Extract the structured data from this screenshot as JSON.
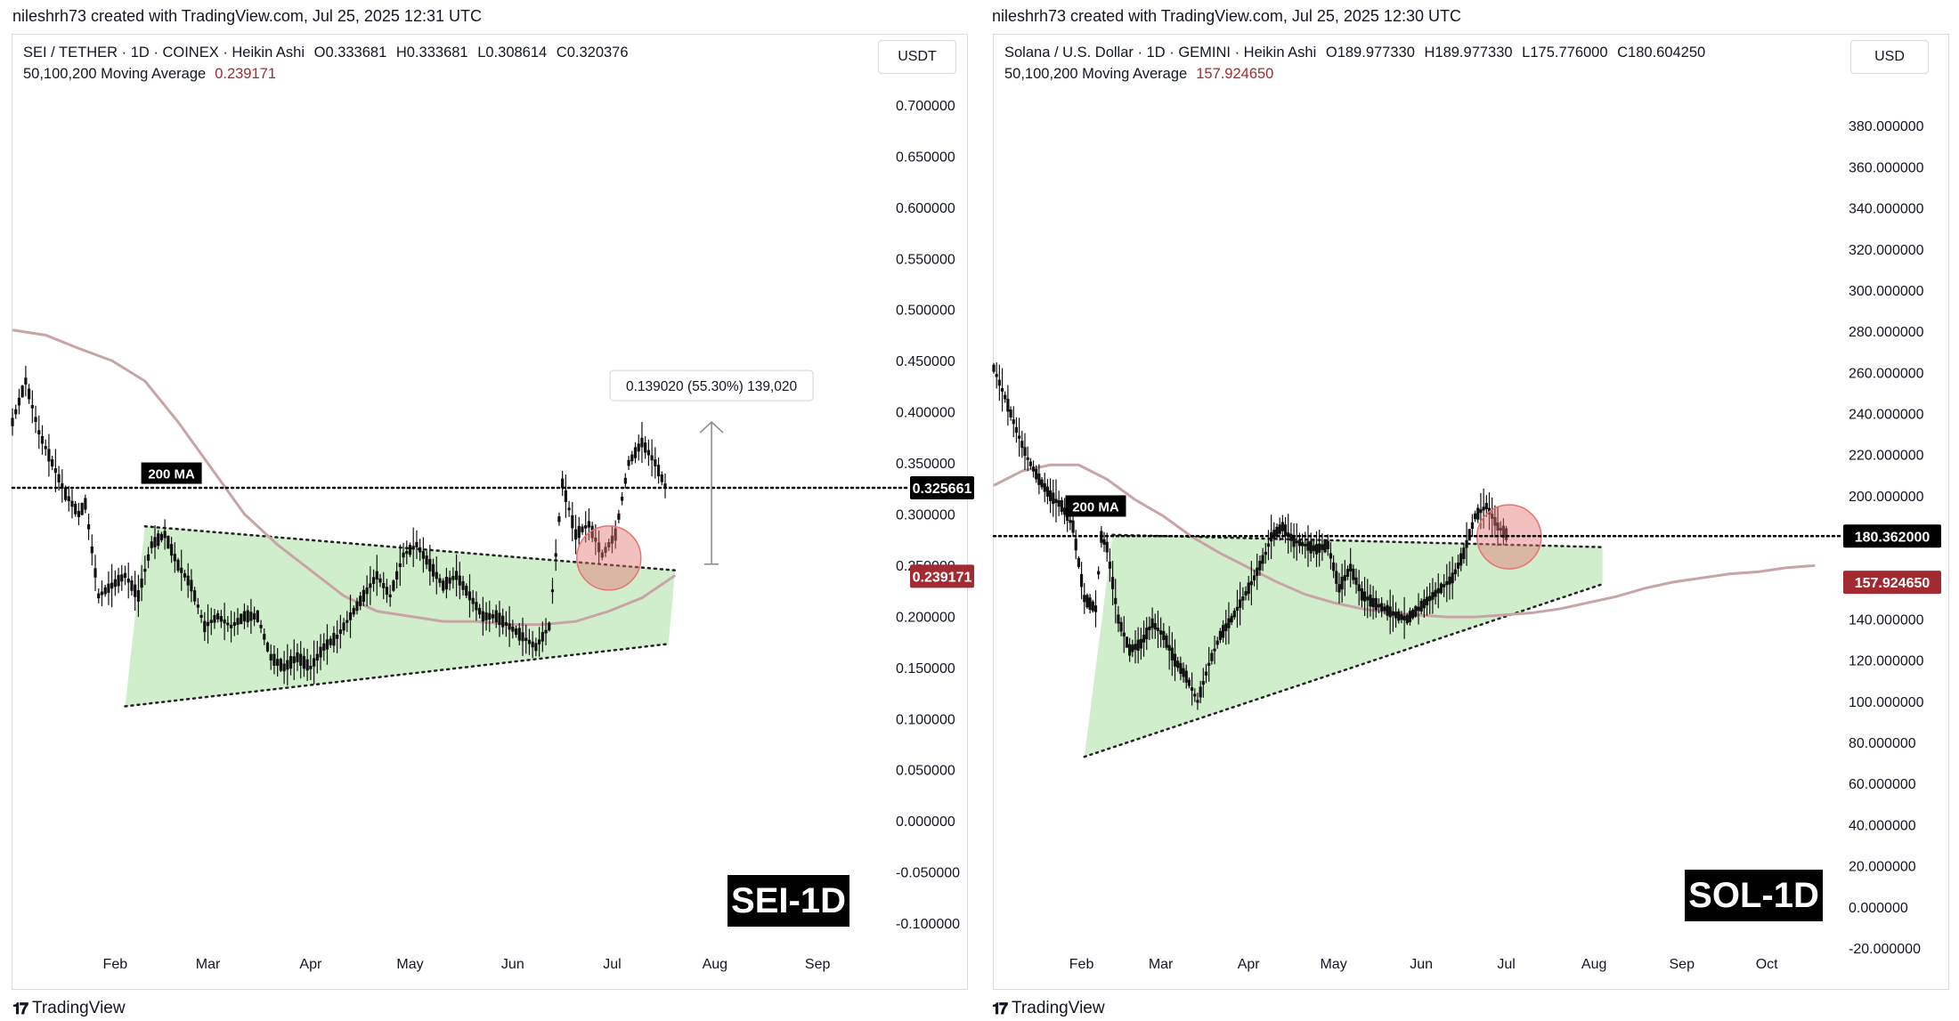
{
  "panels": [
    {
      "credit": "nileshrh73 created with TradingView.com, Jul 25, 2025 12:31 UTC",
      "symbol_line": "SEI / TETHER · 1D · COINEX · Heikin Ashi",
      "ohlc": {
        "o": "O0.333681",
        "h": "H0.333681",
        "l": "L0.308614",
        "c": "C0.320376"
      },
      "ma_label": "50,100,200 Moving Average",
      "ma_value": "0.239171",
      "currency": "USDT",
      "stamp": "SEI-1D",
      "brand": "TradingView"
    },
    {
      "credit": "nileshrh73 created with TradingView.com, Jul 25, 2025 12:30 UTC",
      "symbol_line": "Solana / U.S. Dollar · 1D · GEMINI · Heikin Ashi",
      "ohlc": {
        "o": "O189.977330",
        "h": "H189.977330",
        "l": "L175.776000",
        "c": "C180.604250"
      },
      "ma_label": "50,100,200 Moving Average",
      "ma_value": "157.924650",
      "currency": "USD",
      "stamp": "SOL-1D",
      "brand": "TradingView"
    }
  ],
  "chart_data": [
    {
      "type": "candlestick",
      "title": "SEI / TETHER · 1D · COINEX · Heikin Ashi",
      "y_ticks": [
        "0.700000",
        "0.650000",
        "0.600000",
        "0.550000",
        "0.500000",
        "0.450000",
        "0.400000",
        "0.350000",
        "0.300000",
        "0.250000",
        "0.200000",
        "0.150000",
        "0.100000",
        "0.050000",
        "0.000000",
        "-0.050000",
        "-0.100000"
      ],
      "ylim": [
        -0.12,
        0.72
      ],
      "x_ticks": [
        "Feb",
        "Mar",
        "Apr",
        "May",
        "Jun",
        "Jul",
        "Aug",
        "Sep"
      ],
      "x_tick_days": [
        31,
        59,
        90,
        120,
        151,
        181,
        212,
        243
      ],
      "x_domain": [
        0,
        265
      ],
      "price_line": {
        "value": 0.325661,
        "label": "0.325661",
        "color": "#000000"
      },
      "ma_badge": {
        "value": 0.239171,
        "label": "0.239171",
        "color": "#a32a30"
      },
      "ma200_label": "200 MA",
      "ma200_label_price": 0.34,
      "ma200": {
        "days": [
          0,
          10,
          20,
          30,
          40,
          50,
          60,
          70,
          80,
          90,
          100,
          110,
          120,
          130,
          140,
          150,
          160,
          170,
          180,
          190,
          200
        ],
        "values": [
          0.48,
          0.475,
          0.462,
          0.45,
          0.43,
          0.39,
          0.345,
          0.3,
          0.27,
          0.245,
          0.22,
          0.205,
          0.2,
          0.195,
          0.195,
          0.192,
          0.192,
          0.195,
          0.205,
          0.218,
          0.24
        ]
      },
      "pattern": {
        "upper": [
          [
            40,
            0.288
          ],
          [
            200,
            0.245
          ]
        ],
        "lower": [
          [
            34,
            0.112
          ],
          [
            198,
            0.173
          ]
        ],
        "fill": "#c8ebc3"
      },
      "breakout_circle": {
        "day": 180,
        "price": 0.257,
        "color": "#e57373"
      },
      "measurement": {
        "label": "0.139020 (55.30%) 139,020",
        "day": 211,
        "from": 0.251,
        "to": 0.39
      },
      "price_path": [
        [
          0,
          0.39
        ],
        [
          4,
          0.43
        ],
        [
          8,
          0.38
        ],
        [
          12,
          0.35
        ],
        [
          16,
          0.32
        ],
        [
          20,
          0.3
        ],
        [
          22,
          0.31
        ],
        [
          26,
          0.22
        ],
        [
          30,
          0.23
        ],
        [
          34,
          0.24
        ],
        [
          38,
          0.22
        ],
        [
          42,
          0.27
        ],
        [
          46,
          0.28
        ],
        [
          50,
          0.25
        ],
        [
          54,
          0.23
        ],
        [
          58,
          0.19
        ],
        [
          62,
          0.2
        ],
        [
          66,
          0.19
        ],
        [
          70,
          0.2
        ],
        [
          74,
          0.2
        ],
        [
          78,
          0.16
        ],
        [
          82,
          0.15
        ],
        [
          86,
          0.16
        ],
        [
          90,
          0.15
        ],
        [
          94,
          0.17
        ],
        [
          98,
          0.18
        ],
        [
          102,
          0.2
        ],
        [
          106,
          0.22
        ],
        [
          110,
          0.24
        ],
        [
          114,
          0.22
        ],
        [
          118,
          0.26
        ],
        [
          122,
          0.27
        ],
        [
          126,
          0.25
        ],
        [
          130,
          0.23
        ],
        [
          134,
          0.24
        ],
        [
          138,
          0.22
        ],
        [
          142,
          0.2
        ],
        [
          146,
          0.2
        ],
        [
          150,
          0.19
        ],
        [
          154,
          0.18
        ],
        [
          158,
          0.17
        ],
        [
          162,
          0.19
        ],
        [
          164,
          0.26
        ],
        [
          166,
          0.33
        ],
        [
          170,
          0.28
        ],
        [
          174,
          0.29
        ],
        [
          178,
          0.26
        ],
        [
          182,
          0.28
        ],
        [
          186,
          0.35
        ],
        [
          190,
          0.37
        ],
        [
          194,
          0.35
        ],
        [
          198,
          0.32
        ]
      ]
    },
    {
      "type": "candlestick",
      "title": "Solana / U.S. Dollar · 1D · GEMINI · Heikin Ashi",
      "y_ticks": [
        "380.000000",
        "360.000000",
        "340.000000",
        "320.000000",
        "300.000000",
        "280.000000",
        "260.000000",
        "240.000000",
        "220.000000",
        "200.000000",
        "180.000000",
        "160.000000",
        "140.000000",
        "120.000000",
        "100.000000",
        "80.000000",
        "60.000000",
        "40.000000",
        "20.000000",
        "0.000000",
        "-20.000000"
      ],
      "ylim": [
        -20,
        400
      ],
      "x_ticks": [
        "Feb",
        "Mar",
        "Apr",
        "May",
        "Jun",
        "Jul",
        "Aug",
        "Sep",
        "Oct"
      ],
      "x_tick_days": [
        31,
        59,
        90,
        120,
        151,
        181,
        212,
        243,
        273
      ],
      "x_domain": [
        0,
        300
      ],
      "price_line": {
        "value": 180.362,
        "label": "180.362000",
        "color": "#000000"
      },
      "ma_badge": {
        "value": 157.92465,
        "label": "157.924650",
        "color": "#a32a30"
      },
      "ma200_label": "200 MA",
      "ma200_label_price": 195,
      "ma200": {
        "days": [
          0,
          10,
          20,
          30,
          40,
          50,
          60,
          70,
          80,
          90,
          100,
          110,
          120,
          130,
          140,
          150,
          160,
          170,
          180,
          190,
          200,
          210,
          220,
          230,
          240,
          250,
          260,
          270,
          280,
          290
        ],
        "values": [
          205,
          212,
          215,
          215,
          208,
          198,
          190,
          180,
          172,
          165,
          158,
          152,
          148,
          145,
          143,
          142,
          141,
          141,
          142,
          143,
          145,
          148,
          151,
          155,
          158,
          160,
          162,
          163,
          165,
          166
        ]
      },
      "pattern": {
        "upper": [
          [
            42,
            181
          ],
          [
            215,
            175
          ]
        ],
        "lower": [
          [
            32,
            73
          ],
          [
            215,
            157
          ]
        ],
        "fill": "#c8ebc3"
      },
      "breakout_circle": {
        "day": 182,
        "price": 180,
        "color": "#e57373"
      },
      "price_path": [
        [
          0,
          262
        ],
        [
          4,
          248
        ],
        [
          8,
          232
        ],
        [
          12,
          218
        ],
        [
          16,
          208
        ],
        [
          20,
          200
        ],
        [
          24,
          195
        ],
        [
          28,
          185
        ],
        [
          32,
          150
        ],
        [
          36,
          145
        ],
        [
          38,
          180
        ],
        [
          40,
          175
        ],
        [
          44,
          140
        ],
        [
          48,
          125
        ],
        [
          52,
          128
        ],
        [
          56,
          138
        ],
        [
          60,
          132
        ],
        [
          64,
          120
        ],
        [
          68,
          112
        ],
        [
          72,
          100
        ],
        [
          76,
          118
        ],
        [
          80,
          132
        ],
        [
          84,
          140
        ],
        [
          88,
          150
        ],
        [
          92,
          160
        ],
        [
          96,
          172
        ],
        [
          98,
          180
        ],
        [
          102,
          185
        ],
        [
          106,
          178
        ],
        [
          110,
          176
        ],
        [
          114,
          174
        ],
        [
          118,
          176
        ],
        [
          122,
          155
        ],
        [
          126,
          165
        ],
        [
          130,
          152
        ],
        [
          134,
          148
        ],
        [
          138,
          145
        ],
        [
          142,
          142
        ],
        [
          146,
          140
        ],
        [
          150,
          145
        ],
        [
          154,
          150
        ],
        [
          158,
          155
        ],
        [
          162,
          160
        ],
        [
          166,
          172
        ],
        [
          170,
          190
        ],
        [
          174,
          195
        ],
        [
          178,
          185
        ],
        [
          182,
          180
        ]
      ]
    }
  ]
}
